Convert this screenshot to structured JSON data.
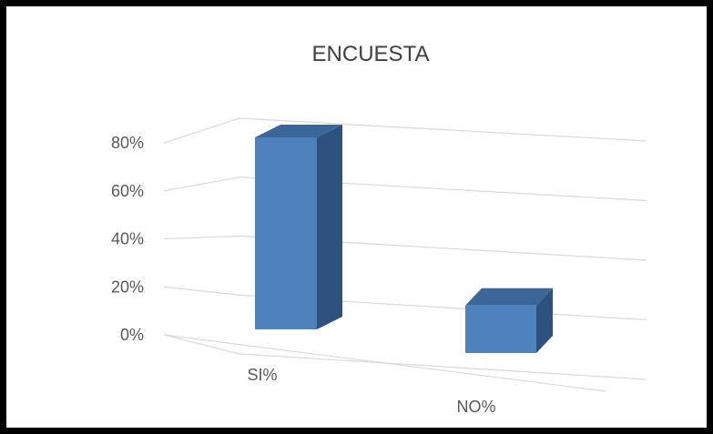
{
  "chart_data": {
    "type": "bar",
    "title": "ENCUESTA",
    "categories": [
      "SI%",
      "NO%"
    ],
    "values": [
      80,
      20
    ],
    "value_unit": "%",
    "ylim": [
      0,
      80
    ],
    "yticks": [
      0,
      20,
      40,
      60,
      80
    ],
    "ytick_labels": [
      "0%",
      "20%",
      "40%",
      "60%",
      "80%"
    ],
    "grid": true,
    "legend": "none",
    "style": "3d-column"
  },
  "colors": {
    "bar_front": "#4f81bd",
    "bar_top": "#3a6699",
    "bar_side": "#2e527d",
    "gridline": "#d9d9d9",
    "frame": "#000000",
    "text": "#595959"
  }
}
